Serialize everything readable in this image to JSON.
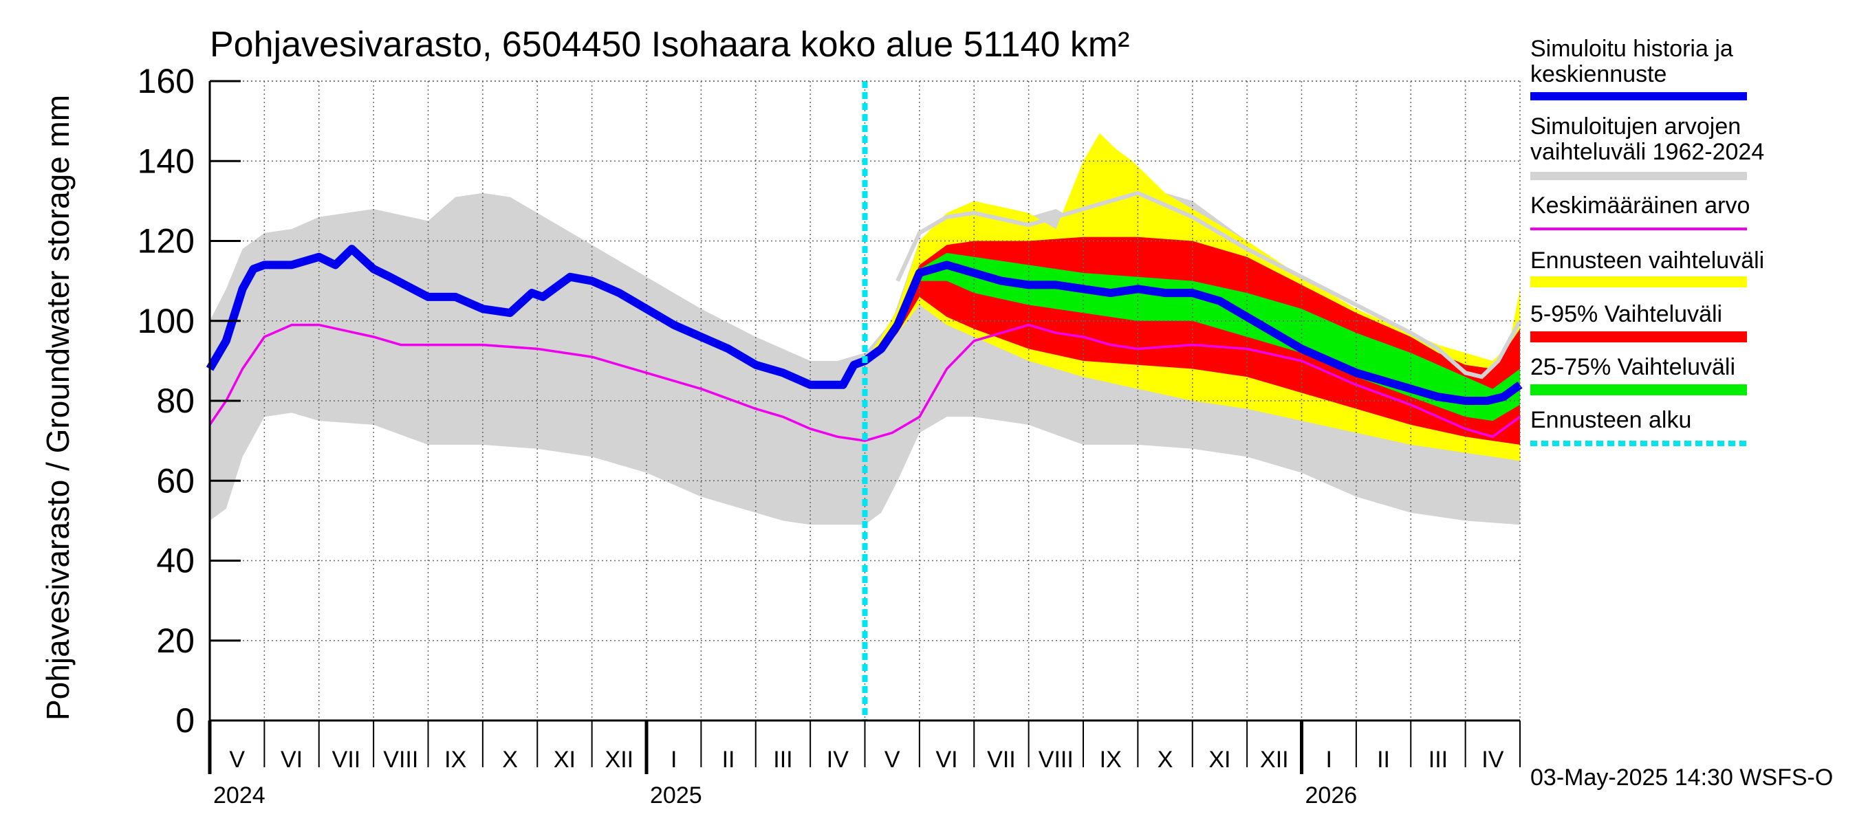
{
  "chart_data": {
    "type": "area",
    "title": "Pohjavesivarasto, 6504450 Isohaara koko alue 51140 km²",
    "ylabel": "Pohjavesivarasto / Groundwater storage   mm",
    "ylim": [
      0,
      160
    ],
    "yticks": [
      0,
      20,
      40,
      60,
      80,
      100,
      120,
      140,
      160
    ],
    "xlim_months": [
      0,
      24
    ],
    "forecast_start_month": 12.0,
    "month_labels": [
      "V",
      "VI",
      "VII",
      "VIII",
      "IX",
      "X",
      "XI",
      "XII",
      "I",
      "II",
      "III",
      "IV",
      "V",
      "VI",
      "VII",
      "VIII",
      "IX",
      "X",
      "XI",
      "XII",
      "I",
      "II",
      "III",
      "IV"
    ],
    "year_labels": [
      {
        "label": "2024",
        "month": 0
      },
      {
        "label": "2025",
        "month": 8
      },
      {
        "label": "2026",
        "month": 20
      }
    ],
    "footer": "03-May-2025 14:30 WSFS-O",
    "colors": {
      "history": "#0000ee",
      "range_hist": "#d3d3d3",
      "mean": "#ee00ee",
      "forecast_range": "#ffff00",
      "p5_95": "#ff0000",
      "p25_75": "#00ee00",
      "forecast_start": "#00e5ee"
    },
    "legend": [
      {
        "label": "Simuloitu historia ja keskiennuste",
        "color": "#0000ee"
      },
      {
        "label": "Simuloitujen arvojen vaihteluväli 1962-2024",
        "color": "#d3d3d3"
      },
      {
        "label": "Keskimääräinen arvo",
        "color": "#ee00ee"
      },
      {
        "label": "Ennusteen vaihteluväli",
        "color": "#ffff00"
      },
      {
        "label": "5-95% Vaihteluväli",
        "color": "#ff0000"
      },
      {
        "label": "25-75% Vaihteluväli",
        "color": "#00ee00"
      },
      {
        "label": "Ennusteen alku",
        "color": "#00e5ee"
      }
    ],
    "series": [
      {
        "name": "Simuloitu historia ja keskiennuste",
        "x": [
          0,
          0.3,
          0.6,
          0.8,
          1.0,
          1.5,
          2.0,
          2.3,
          2.6,
          3.0,
          3.3,
          4.0,
          4.5,
          5.0,
          5.5,
          5.9,
          6.1,
          6.6,
          7.0,
          7.5,
          8.0,
          8.5,
          9.0,
          9.5,
          10.0,
          10.5,
          11.0,
          11.3,
          11.6,
          11.8,
          12.0,
          12.3,
          12.6,
          13.0,
          13.5,
          14.0,
          14.5,
          15.0,
          15.5,
          16.0,
          16.5,
          17.0,
          17.5,
          18.0,
          18.5,
          19.0,
          19.5,
          20.0,
          20.5,
          21.0,
          21.5,
          22.0,
          22.5,
          23.0,
          23.4,
          23.7,
          24.0
        ],
        "y": [
          88,
          95,
          108,
          113,
          114,
          114,
          116,
          114,
          118,
          113,
          111,
          106,
          106,
          103,
          102,
          107,
          106,
          111,
          110,
          107,
          103,
          99,
          96,
          93,
          89,
          87,
          84,
          84,
          84,
          89,
          90,
          93,
          99,
          112,
          114,
          112,
          110,
          109,
          109,
          108,
          107,
          108,
          107,
          107,
          105,
          101,
          97,
          93,
          90,
          87,
          85,
          83,
          81,
          80,
          80,
          81,
          84
        ]
      },
      {
        "name": "Keskimääräinen arvo",
        "x": [
          0,
          0.3,
          0.6,
          1.0,
          1.5,
          2.0,
          3.0,
          3.5,
          4.0,
          4.5,
          5.0,
          6.0,
          7.0,
          8.0,
          9.0,
          10.0,
          10.5,
          11.0,
          11.5,
          12.0,
          12.5,
          13.0,
          13.5,
          14.0,
          15.0,
          15.5,
          16.0,
          16.5,
          17.0,
          18.0,
          19.0,
          20.0,
          21.0,
          22.0,
          22.5,
          23.0,
          23.5,
          24.0
        ],
        "y": [
          74,
          80,
          88,
          96,
          99,
          99,
          96,
          94,
          94,
          94,
          94,
          93,
          91,
          87,
          83,
          78,
          76,
          73,
          71,
          70,
          72,
          76,
          88,
          95,
          99,
          97,
          96,
          94,
          93,
          94,
          93,
          90,
          84,
          79,
          76,
          73,
          71,
          76
        ]
      },
      {
        "name": "Simuloitujen arvojen vaihteluväli 1962-2024 (max)",
        "x": [
          0,
          0.3,
          0.6,
          1.0,
          1.5,
          2.0,
          3.0,
          4.0,
          4.5,
          5.0,
          5.5,
          6.0,
          7.0,
          8.0,
          9.0,
          10.0,
          11.0,
          11.5,
          12.0,
          12.5,
          13.0,
          13.5,
          14.0,
          15.0,
          15.5,
          16.0,
          16.5,
          17.0,
          17.5,
          18.0,
          19.0,
          20.0,
          21.0,
          22.0,
          23.0,
          24.0
        ],
        "y": [
          100,
          108,
          118,
          122,
          123,
          126,
          128,
          125,
          131,
          132,
          131,
          127,
          119,
          111,
          103,
          96,
          90,
          90,
          92,
          100,
          120,
          124,
          125,
          126,
          128,
          124,
          125,
          131,
          132,
          130,
          120,
          110,
          101,
          94,
          88,
          85
        ]
      },
      {
        "name": "Simuloitujen arvojen vaihteluväli 1962-2024 (min)",
        "x": [
          0,
          0.3,
          0.6,
          1.0,
          1.5,
          2.0,
          3.0,
          4.0,
          5.0,
          6.0,
          7.0,
          8.0,
          9.0,
          10.0,
          10.5,
          11.0,
          11.5,
          12.0,
          12.3,
          12.6,
          13.0,
          13.5,
          14.0,
          15.0,
          16.0,
          17.0,
          18.0,
          19.0,
          20.0,
          21.0,
          22.0,
          23.0,
          24.0
        ],
        "y": [
          50,
          53,
          66,
          76,
          77,
          75,
          74,
          69,
          69,
          68,
          66,
          62,
          56,
          52,
          50,
          49,
          49,
          49,
          52,
          60,
          72,
          76,
          76,
          74,
          69,
          69,
          68,
          66,
          62,
          56,
          52,
          50,
          49
        ]
      },
      {
        "name": "Ennusteen vaihteluväli",
        "x_upper": [
          12,
          12.3,
          12.6,
          13.0,
          13.5,
          14.0,
          15.0,
          15.5,
          16.0,
          16.3,
          16.6,
          16.9,
          17.2,
          17.5,
          18.0,
          19.0,
          20.0,
          21.0,
          22.0,
          22.5,
          23.0,
          23.5,
          23.8,
          24.0
        ],
        "upper": [
          90,
          96,
          103,
          120,
          127,
          130,
          127,
          123,
          140,
          147,
          143,
          140,
          136,
          132,
          128,
          120,
          111,
          103,
          97,
          94,
          92,
          90,
          94,
          108
        ],
        "x_lower": [
          12,
          12.3,
          12.6,
          13.0,
          13.5,
          14.0,
          15.0,
          16.0,
          17.0,
          18.0,
          19.0,
          20.0,
          21.0,
          22.0,
          23.0,
          23.5,
          24.0
        ],
        "lower": [
          90,
          93,
          97,
          104,
          99,
          96,
          90,
          86,
          83,
          80,
          78,
          75,
          72,
          69,
          67,
          66,
          65
        ]
      },
      {
        "name": "5-95% Vaihteluväli",
        "x_upper": [
          12,
          12.3,
          12.6,
          13.0,
          13.5,
          14.0,
          15.0,
          16.0,
          17.0,
          18.0,
          19.0,
          20.0,
          21.0,
          22.0,
          22.5,
          23.0,
          23.5,
          24.0
        ],
        "upper": [
          90,
          94,
          101,
          114,
          119,
          120,
          120,
          121,
          121,
          120,
          116,
          109,
          102,
          96,
          92,
          89,
          88,
          98
        ],
        "x_lower": [
          12,
          12.3,
          12.6,
          13.0,
          13.5,
          14.0,
          15.0,
          16.0,
          17.0,
          18.0,
          19.0,
          20.0,
          21.0,
          22.0,
          23.0,
          23.5,
          24.0
        ],
        "lower": [
          90,
          92,
          97,
          106,
          101,
          98,
          93,
          90,
          89,
          88,
          86,
          82,
          78,
          74,
          71,
          70,
          69
        ]
      },
      {
        "name": "25-75% Vaihteluväli",
        "x_upper": [
          12,
          12.3,
          12.6,
          13.0,
          13.5,
          14.0,
          15.0,
          16.0,
          17.0,
          18.0,
          19.0,
          20.0,
          21.0,
          22.0,
          23.0,
          23.5,
          24.0
        ],
        "upper": [
          90,
          94,
          100,
          113,
          117,
          116,
          114,
          112,
          111,
          110,
          107,
          103,
          97,
          92,
          86,
          83,
          88
        ],
        "x_lower": [
          12,
          12.3,
          12.6,
          13.0,
          13.5,
          14.0,
          15.0,
          16.0,
          17.0,
          18.0,
          19.0,
          20.0,
          21.0,
          22.0,
          23.0,
          23.5,
          24.0
        ],
        "lower": [
          90,
          93,
          98,
          110,
          110,
          107,
          104,
          102,
          100,
          100,
          96,
          92,
          86,
          81,
          76,
          75,
          79
        ]
      },
      {
        "name": "Ennusteen maksimi (harmaa viiva)",
        "x": [
          12.6,
          13.0,
          13.5,
          14.0,
          15.0,
          15.5,
          16.0,
          16.5,
          17.0,
          17.5,
          18.0,
          18.5,
          19.0,
          20.0,
          21.0,
          22.0,
          22.5,
          23.0,
          23.3,
          23.6,
          24.0
        ],
        "y": [
          110,
          122,
          126,
          127,
          124,
          126,
          128,
          130,
          132,
          129,
          126,
          122,
          118,
          111,
          104,
          97,
          93,
          87,
          86,
          90,
          100
        ]
      }
    ]
  }
}
